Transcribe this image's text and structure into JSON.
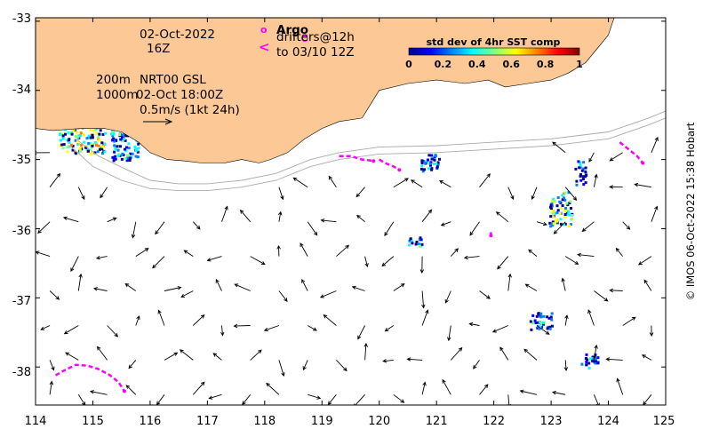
{
  "map": {
    "x_ticks": [
      "114",
      "115",
      "116",
      "117",
      "118",
      "119",
      "120",
      "121",
      "122",
      "123",
      "124",
      "125"
    ],
    "y_ticks": [
      "-33",
      "-34",
      "-35",
      "-36",
      "-37",
      "-38"
    ],
    "lon_range": [
      114,
      125
    ],
    "lat_range": [
      -38.55,
      -32.95
    ],
    "colors": {
      "land": "#fcc896",
      "sea": "#ffffff",
      "argo": "#ff00ff",
      "drifter": "#ff00ff",
      "isobath": "#aaaaaa",
      "vector": "#000000"
    }
  },
  "annotations": {
    "date": "02-Oct-2022",
    "hour": "16Z",
    "isobath_200": "200m",
    "isobath_1000": "1000m",
    "product": "NRT00 GSL",
    "product_time": "02-Oct 18:00Z",
    "scale_label": "0.5m/s (1kt 24h)"
  },
  "legend": {
    "argo_symbol": "o",
    "argo_label": "Argo",
    "drifter_symbol": "<",
    "drifter_label_1": "drifters@12h",
    "drifter_label_2": "to 03/10 12Z"
  },
  "colorbar": {
    "title": "std dev of 4hr SST comp",
    "ticks": [
      "0",
      "0.2",
      "0.4",
      "0.6",
      "0.8",
      "1"
    ],
    "range": [
      0,
      1
    ],
    "colormap": [
      "#00008f",
      "#0000ff",
      "#0080ff",
      "#00ffff",
      "#80ff80",
      "#ffff00",
      "#ff8000",
      "#ff0000",
      "#800000"
    ]
  },
  "credit": "© IMOS 06-Oct-2022 15:38 Hobart",
  "chart_data": {
    "type": "map",
    "coastline": [
      [
        114.0,
        -32.95
      ],
      [
        114.0,
        -34.55
      ],
      [
        114.3,
        -34.58
      ],
      [
        114.8,
        -34.55
      ],
      [
        115.2,
        -34.55
      ],
      [
        115.5,
        -34.6
      ],
      [
        115.8,
        -34.75
      ],
      [
        116.0,
        -34.9
      ],
      [
        116.3,
        -35.0
      ],
      [
        116.6,
        -35.02
      ],
      [
        116.9,
        -35.05
      ],
      [
        117.3,
        -35.05
      ],
      [
        117.6,
        -35.0
      ],
      [
        117.9,
        -35.05
      ],
      [
        118.1,
        -35.0
      ],
      [
        118.4,
        -34.9
      ],
      [
        118.7,
        -34.7
      ],
      [
        119.0,
        -34.55
      ],
      [
        119.3,
        -34.45
      ],
      [
        119.7,
        -34.4
      ],
      [
        120.0,
        -34.0
      ],
      [
        120.5,
        -33.9
      ],
      [
        121.0,
        -33.85
      ],
      [
        121.5,
        -33.9
      ],
      [
        121.9,
        -33.85
      ],
      [
        122.2,
        -33.95
      ],
      [
        122.6,
        -33.9
      ],
      [
        123.0,
        -33.85
      ],
      [
        123.3,
        -33.75
      ],
      [
        123.6,
        -33.6
      ],
      [
        123.8,
        -33.4
      ],
      [
        124.0,
        -33.2
      ],
      [
        124.1,
        -32.95
      ]
    ],
    "isobath_200m": [
      [
        114.7,
        -34.7
      ],
      [
        115.1,
        -34.95
      ],
      [
        115.6,
        -35.15
      ],
      [
        116.0,
        -35.3
      ],
      [
        116.5,
        -35.35
      ],
      [
        117.0,
        -35.35
      ],
      [
        117.6,
        -35.3
      ],
      [
        118.2,
        -35.2
      ],
      [
        118.8,
        -35.0
      ],
      [
        119.3,
        -34.9
      ],
      [
        120.0,
        -34.82
      ],
      [
        121.0,
        -34.8
      ],
      [
        122.0,
        -34.75
      ],
      [
        123.0,
        -34.7
      ],
      [
        124.0,
        -34.6
      ],
      [
        124.7,
        -34.4
      ],
      [
        125.0,
        -34.3
      ]
    ],
    "isobath_1000m": [
      [
        114.6,
        -34.8
      ],
      [
        115.0,
        -35.1
      ],
      [
        115.5,
        -35.3
      ],
      [
        116.0,
        -35.42
      ],
      [
        116.5,
        -35.45
      ],
      [
        117.0,
        -35.45
      ],
      [
        117.6,
        -35.4
      ],
      [
        118.2,
        -35.3
      ],
      [
        118.8,
        -35.1
      ],
      [
        119.3,
        -35.0
      ],
      [
        120.0,
        -34.92
      ],
      [
        121.0,
        -34.9
      ],
      [
        122.0,
        -34.85
      ],
      [
        123.0,
        -34.8
      ],
      [
        124.0,
        -34.7
      ],
      [
        124.7,
        -34.5
      ],
      [
        125.0,
        -34.4
      ]
    ],
    "argo_floats": [
      [
        118.7,
        -33.25
      ]
    ],
    "drifter_tracks": [
      [
        [
          114.35,
          -38.12
        ],
        [
          114.5,
          -38.05
        ],
        [
          114.7,
          -37.97
        ],
        [
          114.9,
          -37.98
        ],
        [
          115.1,
          -38.03
        ],
        [
          115.3,
          -38.12
        ],
        [
          115.45,
          -38.22
        ],
        [
          115.55,
          -38.35
        ]
      ],
      [
        [
          119.3,
          -34.95
        ],
        [
          119.5,
          -34.95
        ],
        [
          119.7,
          -35.0
        ],
        [
          119.9,
          -35.02
        ]
      ],
      [
        [
          120.0,
          -35.0
        ],
        [
          120.1,
          -35.05
        ],
        [
          120.25,
          -35.1
        ],
        [
          120.35,
          -35.15
        ]
      ],
      [
        [
          124.2,
          -34.75
        ],
        [
          124.35,
          -34.85
        ],
        [
          124.5,
          -34.95
        ],
        [
          124.6,
          -35.05
        ]
      ],
      [
        [
          121.95,
          -36.05
        ],
        [
          121.95,
          -36.1
        ]
      ]
    ],
    "sst_std_patches": [
      [
        114.4,
        -33.6,
        0.8,
        1.3,
        0.5
      ],
      [
        115.3,
        -34.5,
        0.5,
        0.5,
        0.3
      ],
      [
        120.7,
        -34.9,
        0.35,
        0.25,
        0.2
      ],
      [
        122.95,
        -35.45,
        0.4,
        0.5,
        0.45
      ],
      [
        123.4,
        -35.0,
        0.2,
        0.35,
        0.2
      ],
      [
        120.5,
        -36.1,
        0.25,
        0.15,
        0.2
      ],
      [
        122.6,
        -37.2,
        0.4,
        0.25,
        0.25
      ],
      [
        123.5,
        -37.8,
        0.3,
        0.2,
        0.15
      ]
    ]
  }
}
